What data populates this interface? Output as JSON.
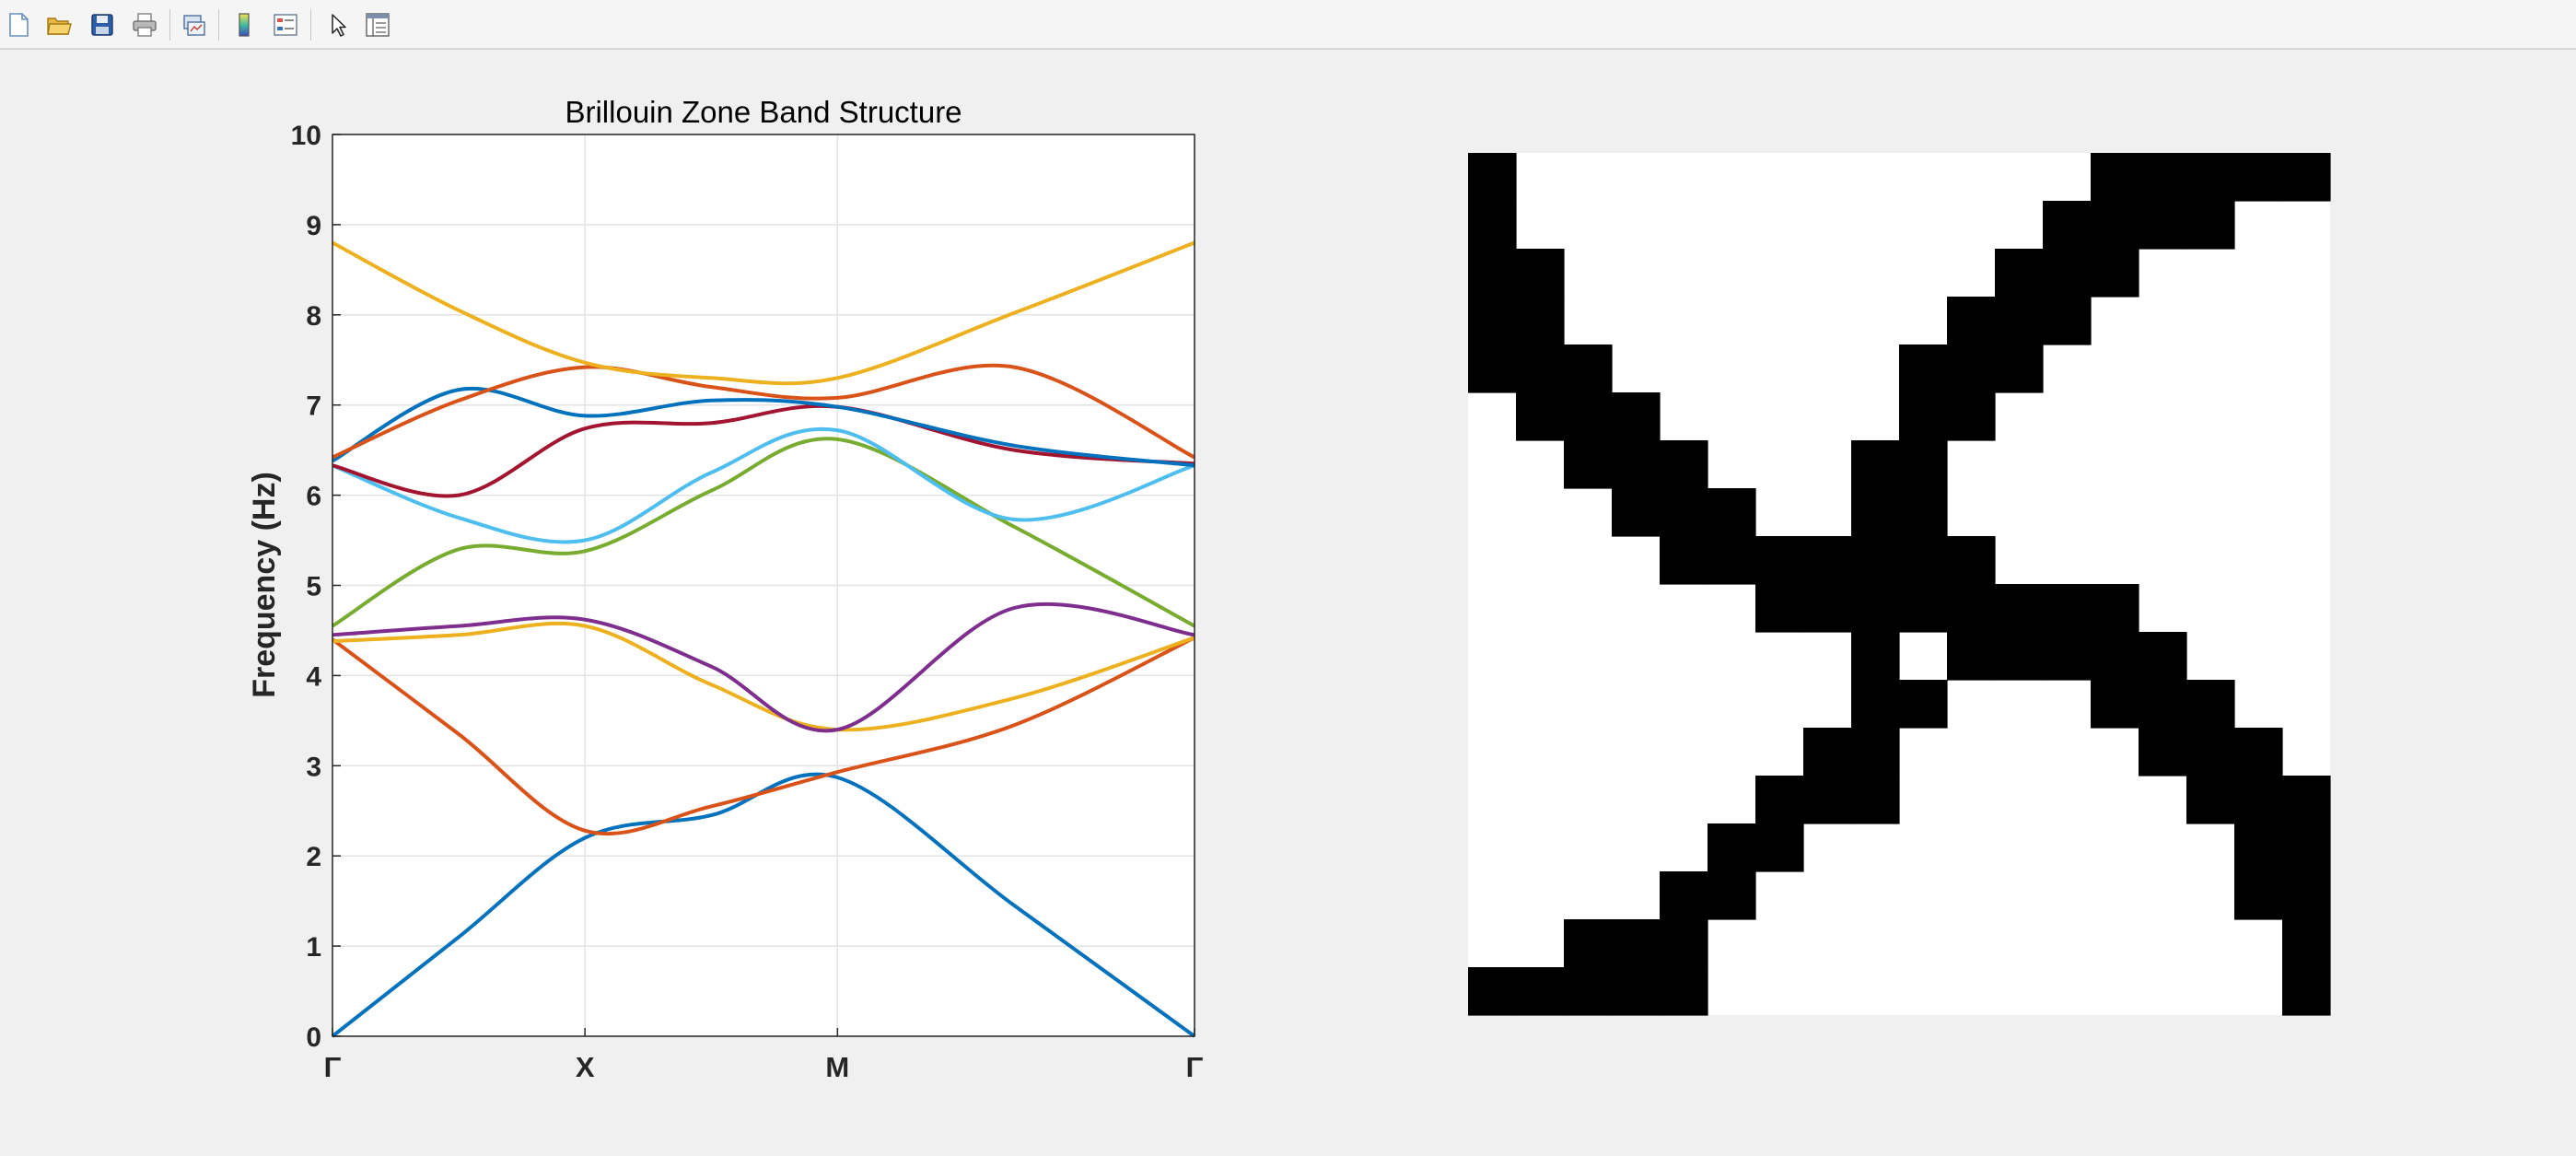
{
  "toolbar": {
    "items": [
      {
        "name": "new-figure-icon"
      },
      {
        "name": "open-file-icon"
      },
      {
        "name": "save-icon"
      },
      {
        "name": "print-icon"
      },
      {
        "name": "link-plot-icon"
      },
      {
        "name": "insert-colorbar-icon"
      },
      {
        "name": "insert-legend-icon"
      },
      {
        "name": "edit-plot-arrow-icon"
      },
      {
        "name": "property-inspector-icon"
      }
    ]
  },
  "colors": {
    "blue": "#0072BD",
    "orange": "#D95319",
    "yellow": "#EDB120",
    "purple": "#7E2F8E",
    "green": "#77AC30",
    "cyan": "#4DBEEE",
    "darkred": "#A2142F"
  },
  "chart_data": [
    {
      "type": "line",
      "title": "Brillouin Zone Band Structure",
      "xlabel": "",
      "ylabel": "Frequency (Hz)",
      "ylim": [
        0,
        10
      ],
      "yticks": [
        "0",
        "1",
        "2",
        "3",
        "4",
        "5",
        "6",
        "7",
        "8",
        "9",
        "10"
      ],
      "xlim": [
        0,
        3.414
      ],
      "xtick_positions": [
        0,
        1,
        2,
        3.414
      ],
      "xticks": [
        "Γ",
        "X",
        "M",
        "Γ"
      ],
      "grid": true,
      "series": [
        {
          "color": "#0072BD",
          "x": [
            0,
            0.5,
            1,
            1.5,
            2,
            2.7,
            3.414
          ],
          "y": [
            0,
            1.1,
            2.2,
            2.45,
            2.87,
            1.45,
            0
          ]
        },
        {
          "color": "#D95319",
          "x": [
            0,
            0.5,
            1,
            1.5,
            2,
            2.7,
            3.414
          ],
          "y": [
            4.4,
            3.35,
            2.28,
            2.55,
            2.93,
            3.45,
            4.42
          ]
        },
        {
          "color": "#EDB120",
          "x": [
            0,
            0.5,
            1,
            1.5,
            2,
            2.7,
            3.414
          ],
          "y": [
            4.38,
            4.45,
            4.55,
            3.9,
            3.4,
            3.75,
            4.42
          ]
        },
        {
          "color": "#7E2F8E",
          "x": [
            0,
            0.5,
            1,
            1.5,
            2,
            2.7,
            3.414
          ],
          "y": [
            4.45,
            4.55,
            4.62,
            4.1,
            3.4,
            4.75,
            4.45
          ]
        },
        {
          "color": "#77AC30",
          "x": [
            0,
            0.5,
            1,
            1.5,
            2,
            2.7,
            3.414
          ],
          "y": [
            4.55,
            5.4,
            5.38,
            6.05,
            6.62,
            5.65,
            4.55
          ]
        },
        {
          "color": "#4DBEEE",
          "x": [
            0,
            0.5,
            1,
            1.5,
            2,
            2.7,
            3.414
          ],
          "y": [
            6.33,
            5.75,
            5.5,
            6.25,
            6.72,
            5.73,
            6.33
          ]
        },
        {
          "color": "#A2142F",
          "x": [
            0,
            0.5,
            1,
            1.5,
            2,
            2.7,
            3.414
          ],
          "y": [
            6.33,
            6.0,
            6.74,
            6.8,
            6.98,
            6.5,
            6.35
          ]
        },
        {
          "color": "#0072BD",
          "x": [
            0,
            0.5,
            1,
            1.5,
            2,
            2.7,
            3.414
          ],
          "y": [
            6.38,
            7.17,
            6.88,
            7.05,
            6.98,
            6.55,
            6.33
          ]
        },
        {
          "color": "#D95319",
          "x": [
            0,
            0.5,
            1,
            1.5,
            2,
            2.7,
            3.414
          ],
          "y": [
            6.42,
            7.05,
            7.42,
            7.2,
            7.08,
            7.42,
            6.42
          ]
        },
        {
          "color": "#EDB120",
          "x": [
            0,
            0.5,
            1,
            1.5,
            2,
            2.7,
            3.414
          ],
          "y": [
            8.8,
            8.05,
            7.47,
            7.3,
            7.3,
            8.02,
            8.8
          ]
        }
      ]
    },
    {
      "type": "heatmap",
      "colormap": [
        "#ffffff",
        "#000000"
      ],
      "grid": [
        [
          1,
          0,
          0,
          0,
          0,
          0,
          0,
          0,
          0,
          0,
          0,
          0,
          0,
          1,
          1,
          1,
          1,
          1
        ],
        [
          1,
          0,
          0,
          0,
          0,
          0,
          0,
          0,
          0,
          0,
          0,
          0,
          1,
          1,
          1,
          1,
          0,
          0
        ],
        [
          1,
          1,
          0,
          0,
          0,
          0,
          0,
          0,
          0,
          0,
          0,
          1,
          1,
          1,
          0,
          0,
          0,
          0
        ],
        [
          1,
          1,
          0,
          0,
          0,
          0,
          0,
          0,
          0,
          0,
          1,
          1,
          1,
          0,
          0,
          0,
          0,
          0
        ],
        [
          1,
          1,
          1,
          0,
          0,
          0,
          0,
          0,
          0,
          1,
          1,
          1,
          0,
          0,
          0,
          0,
          0,
          0
        ],
        [
          0,
          1,
          1,
          1,
          0,
          0,
          0,
          0,
          0,
          1,
          1,
          0,
          0,
          0,
          0,
          0,
          0,
          0
        ],
        [
          0,
          0,
          1,
          1,
          1,
          0,
          0,
          0,
          1,
          1,
          0,
          0,
          0,
          0,
          0,
          0,
          0,
          0
        ],
        [
          0,
          0,
          0,
          1,
          1,
          1,
          0,
          0,
          1,
          1,
          0,
          0,
          0,
          0,
          0,
          0,
          0,
          0
        ],
        [
          0,
          0,
          0,
          0,
          1,
          1,
          1,
          1,
          1,
          1,
          1,
          0,
          0,
          0,
          0,
          0,
          0,
          0
        ],
        [
          0,
          0,
          0,
          0,
          0,
          0,
          1,
          1,
          1,
          1,
          1,
          1,
          1,
          1,
          0,
          0,
          0,
          0
        ],
        [
          0,
          0,
          0,
          0,
          0,
          0,
          0,
          0,
          1,
          0,
          1,
          1,
          1,
          1,
          1,
          0,
          0,
          0
        ],
        [
          0,
          0,
          0,
          0,
          0,
          0,
          0,
          0,
          1,
          1,
          0,
          0,
          0,
          1,
          1,
          1,
          0,
          0
        ],
        [
          0,
          0,
          0,
          0,
          0,
          0,
          0,
          1,
          1,
          0,
          0,
          0,
          0,
          0,
          1,
          1,
          1,
          0
        ],
        [
          0,
          0,
          0,
          0,
          0,
          0,
          1,
          1,
          1,
          0,
          0,
          0,
          0,
          0,
          0,
          1,
          1,
          1
        ],
        [
          0,
          0,
          0,
          0,
          0,
          1,
          1,
          0,
          0,
          0,
          0,
          0,
          0,
          0,
          0,
          0,
          1,
          1
        ],
        [
          0,
          0,
          0,
          0,
          1,
          1,
          0,
          0,
          0,
          0,
          0,
          0,
          0,
          0,
          0,
          0,
          1,
          1
        ],
        [
          0,
          0,
          1,
          1,
          1,
          0,
          0,
          0,
          0,
          0,
          0,
          0,
          0,
          0,
          0,
          0,
          0,
          1
        ],
        [
          1,
          1,
          1,
          1,
          1,
          0,
          0,
          0,
          0,
          0,
          0,
          0,
          0,
          0,
          0,
          0,
          0,
          1
        ]
      ]
    }
  ]
}
